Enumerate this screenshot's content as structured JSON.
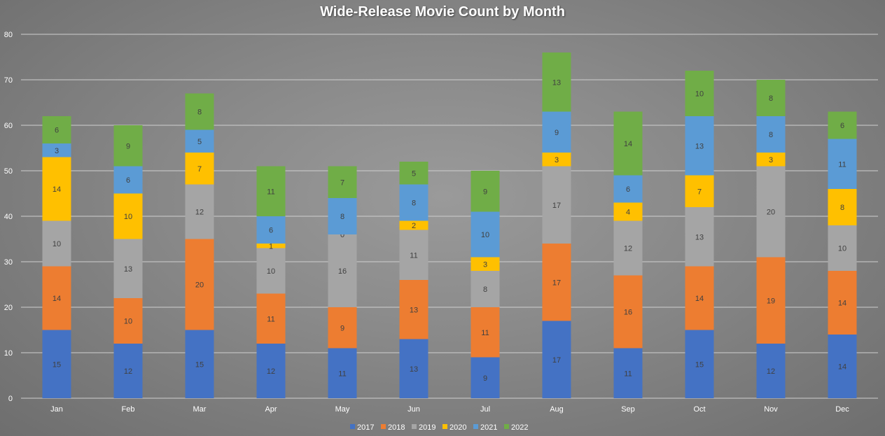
{
  "chart_data": {
    "type": "bar",
    "stacked": true,
    "title": "Wide-Release Movie Count by Month",
    "xlabel": "",
    "ylabel": "",
    "ylim": [
      0,
      80
    ],
    "yticks": [
      0,
      10,
      20,
      30,
      40,
      50,
      60,
      70,
      80
    ],
    "grid": true,
    "legend_position": "bottom",
    "categories": [
      "Jan",
      "Feb",
      "Mar",
      "Apr",
      "May",
      "Jun",
      "Jul",
      "Aug",
      "Sep",
      "Oct",
      "Nov",
      "Dec"
    ],
    "series": [
      {
        "name": "2017",
        "color": "#4472c4",
        "values": [
          15,
          12,
          15,
          12,
          11,
          13,
          9,
          17,
          11,
          15,
          12,
          14
        ]
      },
      {
        "name": "2018",
        "color": "#ed7d31",
        "values": [
          14,
          10,
          20,
          11,
          9,
          13,
          11,
          17,
          16,
          14,
          19,
          14
        ]
      },
      {
        "name": "2019",
        "color": "#a5a5a5",
        "values": [
          10,
          13,
          12,
          10,
          16,
          11,
          8,
          17,
          12,
          13,
          20,
          10
        ]
      },
      {
        "name": "2020",
        "color": "#ffc000",
        "values": [
          14,
          10,
          7,
          1,
          0,
          2,
          3,
          3,
          4,
          7,
          3,
          8
        ]
      },
      {
        "name": "2021",
        "color": "#5b9bd5",
        "values": [
          3,
          6,
          5,
          6,
          8,
          8,
          10,
          9,
          6,
          13,
          8,
          11
        ]
      },
      {
        "name": "2022",
        "color": "#70ad47",
        "values": [
          6,
          9,
          8,
          11,
          7,
          5,
          9,
          13,
          14,
          10,
          8,
          6
        ]
      }
    ],
    "data_labels": true
  }
}
